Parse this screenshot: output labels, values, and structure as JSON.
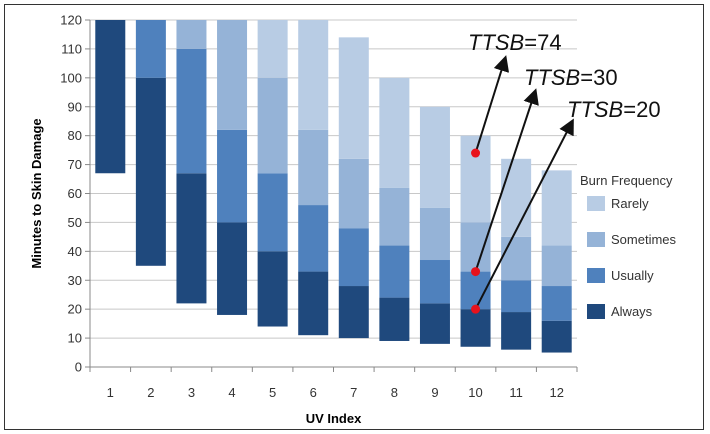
{
  "chart_data": {
    "type": "bar",
    "subtype": "stacked-floating",
    "xlabel": "UV Index",
    "ylabel": "Minutes to Skin Damage",
    "ylim": [
      0,
      120
    ],
    "yticks": [
      0,
      10,
      20,
      30,
      40,
      50,
      60,
      70,
      80,
      90,
      100,
      110,
      120
    ],
    "grid": true,
    "legend_position": "right",
    "categories": [
      "1",
      "2",
      "3",
      "4",
      "5",
      "6",
      "7",
      "8",
      "9",
      "10",
      "11",
      "12"
    ],
    "legend_title": "Burn Frequency",
    "series": [
      {
        "name": "Always",
        "color": "#1f497d",
        "start": [
          67,
          35,
          22,
          18,
          14,
          11,
          10,
          9,
          8,
          7,
          6,
          5
        ],
        "end": [
          120,
          100,
          67,
          50,
          40,
          33,
          28,
          24,
          22,
          20,
          19,
          16
        ]
      },
      {
        "name": "Usually",
        "color": "#4f81bd",
        "start": [
          120,
          100,
          67,
          50,
          40,
          33,
          28,
          24,
          22,
          20,
          19,
          16
        ],
        "end": [
          120,
          120,
          110,
          82,
          67,
          56,
          48,
          42,
          37,
          33,
          30,
          28
        ]
      },
      {
        "name": "Sometimes",
        "color": "#95b3d7",
        "start": [
          120,
          120,
          110,
          82,
          67,
          56,
          48,
          42,
          37,
          33,
          30,
          28
        ],
        "end": [
          120,
          120,
          120,
          120,
          100,
          82,
          72,
          62,
          55,
          50,
          45,
          42
        ]
      },
      {
        "name": "Rarely",
        "color": "#b8cce4",
        "start": [
          120,
          120,
          120,
          120,
          100,
          82,
          72,
          62,
          55,
          50,
          45,
          42
        ],
        "end": [
          120,
          120,
          120,
          120,
          120,
          120,
          114,
          100,
          90,
          80,
          72,
          68
        ]
      }
    ],
    "annotations": [
      {
        "label_prefix": "TTSB",
        "label_suffix": "=74",
        "x": "10",
        "y": 74
      },
      {
        "label_prefix": "TTSB",
        "label_suffix": "=30",
        "x": "10",
        "y": 33
      },
      {
        "label_prefix": "TTSB",
        "label_suffix": "=20",
        "x": "10",
        "y": 20
      }
    ],
    "marker_color": "#e8121b"
  }
}
